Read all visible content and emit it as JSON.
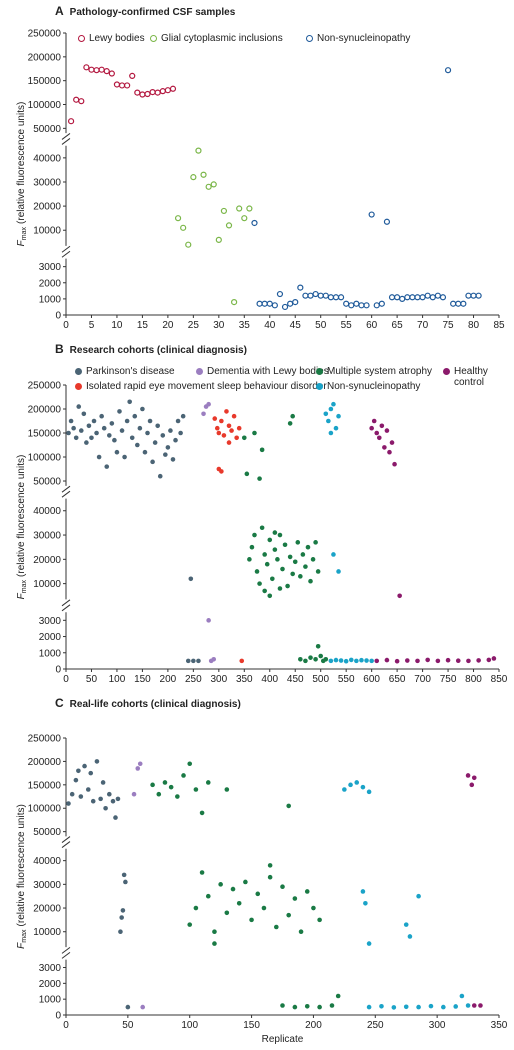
{
  "chart_data": [
    {
      "type": "scatter",
      "panel": "A",
      "title": "Pathology-confirmed CSF samples",
      "marker": "open",
      "legend": true,
      "y_label": {
        "symbol": "F",
        "subscript": "max",
        "text": "(relative fluorescence units)"
      },
      "xlim": [
        0,
        85
      ],
      "xticks": [
        0,
        5,
        10,
        15,
        20,
        25,
        30,
        35,
        40,
        45,
        50,
        55,
        60,
        65,
        70,
        75,
        80,
        85
      ],
      "y_segments": [
        {
          "ylim": [
            0,
            3500
          ],
          "yticks": [
            0,
            1000,
            2000,
            3000
          ]
        },
        {
          "ylim": [
            3500,
            45000
          ],
          "yticks": [
            10000,
            20000,
            30000,
            40000
          ]
        },
        {
          "ylim": [
            40000,
            250000
          ],
          "yticks": [
            50000,
            100000,
            150000,
            200000,
            250000
          ]
        }
      ],
      "series": [
        {
          "name": "Lewy bodies",
          "color": "#b3173f",
          "x": [
            1,
            2,
            3,
            4,
            5,
            6,
            7,
            8,
            9,
            10,
            11,
            12,
            13,
            14,
            15,
            16,
            17,
            18,
            19,
            20,
            21
          ],
          "values": [
            65000,
            110000,
            107000,
            178000,
            173000,
            172000,
            173000,
            170000,
            165000,
            142000,
            140000,
            140000,
            160000,
            125000,
            121000,
            122000,
            126000,
            125000,
            128000,
            130000,
            133000
          ]
        },
        {
          "name": "Glial cytoplasmic inclusions",
          "color": "#7ab648",
          "x": [
            22,
            23,
            24,
            25,
            26,
            27,
            28,
            29,
            30,
            31,
            32,
            33,
            34,
            35,
            36
          ],
          "values": [
            15000,
            11000,
            4000,
            32000,
            43000,
            33000,
            28000,
            29000,
            6000,
            18000,
            12000,
            800,
            19000,
            15000,
            19000
          ]
        },
        {
          "name": "Non-synucleinopathy",
          "color": "#1f5a9a",
          "x": [
            37,
            38,
            39,
            40,
            41,
            42,
            43,
            44,
            45,
            46,
            47,
            48,
            49,
            50,
            51,
            52,
            53,
            54,
            55,
            56,
            57,
            58,
            59,
            60,
            61,
            62,
            63,
            64,
            65,
            66,
            67,
            68,
            69,
            70,
            71,
            72,
            73,
            74,
            75,
            76,
            77,
            78,
            79,
            80,
            81
          ],
          "values": [
            13000,
            700,
            700,
            700,
            600,
            1300,
            500,
            700,
            800,
            1700,
            1200,
            1200,
            1300,
            1200,
            1200,
            1100,
            1100,
            1100,
            700,
            600,
            700,
            600,
            600,
            16500,
            600,
            700,
            13500,
            1100,
            1100,
            1000,
            1100,
            1100,
            1100,
            1100,
            1200,
            1100,
            1200,
            1100,
            172000,
            700,
            700,
            700,
            1200,
            1200,
            1200
          ]
        }
      ]
    },
    {
      "type": "scatter",
      "panel": "B",
      "title": "Research cohorts (clinical diagnosis)",
      "marker": "filled",
      "legend": true,
      "y_label": {
        "symbol": "F",
        "subscript": "max",
        "text": "(relative fluorescence units)"
      },
      "xlim": [
        0,
        850
      ],
      "xticks": [
        0,
        50,
        100,
        150,
        200,
        250,
        300,
        350,
        400,
        450,
        500,
        550,
        600,
        650,
        700,
        750,
        800,
        850
      ],
      "y_segments": [
        {
          "ylim": [
            0,
            3500
          ],
          "yticks": [
            0,
            1000,
            2000,
            3000
          ]
        },
        {
          "ylim": [
            3500,
            45000
          ],
          "yticks": [
            10000,
            20000,
            30000,
            40000
          ]
        },
        {
          "ylim": [
            40000,
            250000
          ],
          "yticks": [
            50000,
            100000,
            150000,
            200000,
            250000
          ]
        }
      ],
      "series": [
        {
          "name": "Parkinson's disease",
          "color": "#4b6475",
          "x": [
            5,
            10,
            15,
            20,
            25,
            30,
            35,
            40,
            45,
            50,
            55,
            60,
            65,
            70,
            75,
            80,
            85,
            90,
            95,
            100,
            105,
            110,
            115,
            120,
            125,
            130,
            135,
            140,
            145,
            150,
            155,
            160,
            165,
            170,
            175,
            180,
            185,
            190,
            195,
            200,
            205,
            210,
            215,
            220,
            225,
            230,
            240,
            245,
            250,
            260
          ],
          "values": [
            150000,
            175000,
            160000,
            140000,
            205000,
            155000,
            190000,
            130000,
            165000,
            140000,
            175000,
            150000,
            100000,
            185000,
            160000,
            80000,
            145000,
            170000,
            135000,
            110000,
            195000,
            155000,
            100000,
            175000,
            215000,
            140000,
            185000,
            125000,
            160000,
            200000,
            110000,
            150000,
            175000,
            90000,
            130000,
            165000,
            60000,
            145000,
            105000,
            120000,
            155000,
            95000,
            135000,
            175000,
            150000,
            185000,
            500,
            12000,
            500,
            500
          ]
        },
        {
          "name": "Dementia with Lewy bodies",
          "color": "#9b7ec0",
          "x": [
            270,
            275,
            280,
            285,
            280,
            290
          ],
          "values": [
            190000,
            205000,
            210000,
            500,
            3000,
            600
          ]
        },
        {
          "name": "Multiple system atrophy",
          "color": "#1a7a45",
          "x": [
            350,
            355,
            370,
            380,
            385,
            440,
            445,
            360,
            365,
            370,
            375,
            380,
            385,
            390,
            395,
            400,
            405,
            410,
            415,
            420,
            425,
            430,
            435,
            440,
            445,
            450,
            455,
            460,
            465,
            470,
            475,
            480,
            485,
            490,
            495,
            400,
            420,
            410,
            390,
            460,
            470,
            480,
            490,
            495,
            500,
            505,
            510
          ],
          "values": [
            140000,
            65000,
            150000,
            55000,
            115000,
            170000,
            185000,
            20000,
            25000,
            30000,
            15000,
            10000,
            33000,
            22000,
            18000,
            28000,
            12000,
            24000,
            20000,
            30000,
            16000,
            26000,
            9000,
            21000,
            14000,
            19000,
            27000,
            13000,
            22000,
            17000,
            25000,
            11000,
            20000,
            27000,
            15000,
            5000,
            8000,
            31000,
            7000,
            600,
            500,
            700,
            600,
            1400,
            800,
            500,
            600
          ]
        },
        {
          "name": "Healthy control",
          "color": "#8b1a6b",
          "x": [
            600,
            605,
            610,
            615,
            620,
            625,
            630,
            635,
            640,
            645,
            655,
            610,
            630,
            650,
            670,
            690,
            710,
            730,
            750,
            770,
            790,
            810,
            830,
            840
          ],
          "values": [
            160000,
            175000,
            150000,
            140000,
            165000,
            120000,
            155000,
            110000,
            130000,
            85000,
            5000,
            500,
            550,
            480,
            520,
            500,
            560,
            500,
            540,
            510,
            500,
            530,
            560,
            650
          ]
        },
        {
          "name": "Isolated rapid eye movement sleep behaviour disorder",
          "color": "#e8392b",
          "x": [
            292,
            297,
            300,
            305,
            310,
            315,
            320,
            325,
            330,
            335,
            340,
            300,
            305,
            320,
            345
          ],
          "values": [
            180000,
            160000,
            150000,
            175000,
            145000,
            195000,
            165000,
            155000,
            185000,
            140000,
            160000,
            75000,
            70000,
            130000,
            500
          ]
        },
        {
          "name": "Non-synucleinopathy",
          "color": "#1aa3c8",
          "x": [
            510,
            515,
            520,
            525,
            530,
            520,
            535,
            525,
            535,
            520,
            530,
            540,
            550,
            560,
            570,
            580,
            590,
            600
          ],
          "values": [
            190000,
            175000,
            200000,
            210000,
            160000,
            150000,
            185000,
            22000,
            15000,
            500,
            550,
            520,
            480,
            560,
            500,
            540,
            520,
            500
          ]
        }
      ]
    },
    {
      "type": "scatter",
      "panel": "C",
      "title": "Real-life cohorts (clinical diagnosis)",
      "marker": "filled",
      "legend": false,
      "x_label": "Replicate",
      "y_label": {
        "symbol": "F",
        "subscript": "max",
        "text": "(relative fluorescence units)"
      },
      "xlim": [
        0,
        350
      ],
      "xticks": [
        0,
        50,
        100,
        150,
        200,
        250,
        300,
        350
      ],
      "y_segments": [
        {
          "ylim": [
            0,
            3500
          ],
          "yticks": [
            0,
            1000,
            2000,
            3000
          ]
        },
        {
          "ylim": [
            3500,
            45000
          ],
          "yticks": [
            10000,
            20000,
            30000,
            40000
          ]
        },
        {
          "ylim": [
            40000,
            250000
          ],
          "yticks": [
            50000,
            100000,
            150000,
            200000,
            250000
          ]
        }
      ],
      "series": [
        {
          "color": "#4b6475",
          "x": [
            2,
            5,
            8,
            10,
            12,
            15,
            18,
            20,
            22,
            25,
            28,
            30,
            32,
            35,
            38,
            40,
            42,
            44,
            45,
            46,
            47,
            48,
            50
          ],
          "values": [
            110000,
            130000,
            160000,
            180000,
            125000,
            190000,
            140000,
            175000,
            115000,
            200000,
            120000,
            155000,
            100000,
            130000,
            115000,
            80000,
            120000,
            10000,
            16000,
            19000,
            34000,
            31000,
            500
          ]
        },
        {
          "color": "#9b7ec0",
          "x": [
            55,
            58,
            60,
            62
          ],
          "values": [
            130000,
            185000,
            195000,
            500
          ]
        },
        {
          "color": "#1a7a45",
          "x": [
            70,
            75,
            80,
            85,
            90,
            95,
            100,
            105,
            110,
            115,
            130,
            180,
            100,
            105,
            110,
            115,
            120,
            125,
            130,
            135,
            140,
            145,
            150,
            155,
            160,
            165,
            170,
            175,
            180,
            185,
            190,
            195,
            200,
            205,
            120,
            165,
            175,
            185,
            195,
            205,
            215,
            220
          ],
          "values": [
            150000,
            130000,
            155000,
            145000,
            125000,
            170000,
            195000,
            140000,
            90000,
            155000,
            140000,
            105000,
            13000,
            20000,
            35000,
            25000,
            10000,
            30000,
            18000,
            28000,
            22000,
            31000,
            15000,
            26000,
            20000,
            33000,
            12000,
            29000,
            17000,
            24000,
            10000,
            27000,
            20000,
            15000,
            5000,
            38000,
            600,
            500,
            550,
            500,
            600,
            1200
          ]
        },
        {
          "color": "#1aa3c8",
          "x": [
            225,
            230,
            235,
            240,
            245,
            240,
            242,
            245,
            275,
            278,
            285,
            245,
            255,
            265,
            275,
            285,
            295,
            305,
            315,
            320,
            325
          ],
          "values": [
            140000,
            150000,
            155000,
            145000,
            135000,
            27000,
            22000,
            5000,
            13000,
            8000,
            25000,
            500,
            550,
            480,
            520,
            500,
            560,
            500,
            540,
            1200,
            600
          ]
        },
        {
          "color": "#8b1a6b",
          "x": [
            325,
            328,
            330,
            330,
            335
          ],
          "values": [
            170000,
            150000,
            165000,
            600,
            600
          ]
        }
      ]
    }
  ]
}
